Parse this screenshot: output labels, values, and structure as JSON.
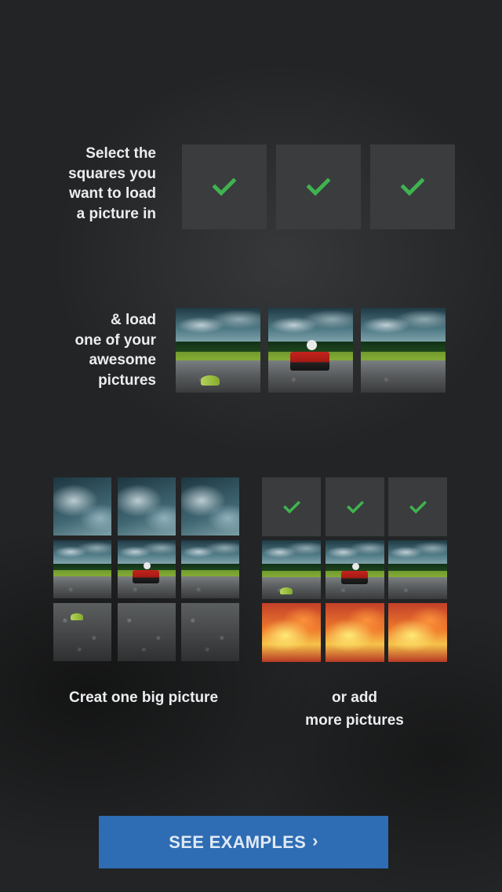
{
  "step1": {
    "caption_lines": [
      "Select the",
      "squares you",
      "want to load",
      "a picture in"
    ],
    "slots": [
      {
        "icon": "check-icon",
        "state": "selected"
      },
      {
        "icon": "check-icon",
        "state": "selected"
      },
      {
        "icon": "check-icon",
        "state": "selected"
      }
    ]
  },
  "step2": {
    "caption_lines": [
      "& load",
      "one of your",
      "awesome",
      "pictures"
    ]
  },
  "step3": {
    "big_picture_caption": "Creat one big picture",
    "more_pictures_caption_lines": [
      "or add",
      "more pictures"
    ]
  },
  "cta": {
    "label": "SEE EXAMPLES",
    "chevron": "›"
  },
  "colors": {
    "accent_blue": "#2e6db4",
    "check_green": "#3fb34f",
    "slot_gray": "#3a3c3e",
    "background": "#232425"
  }
}
